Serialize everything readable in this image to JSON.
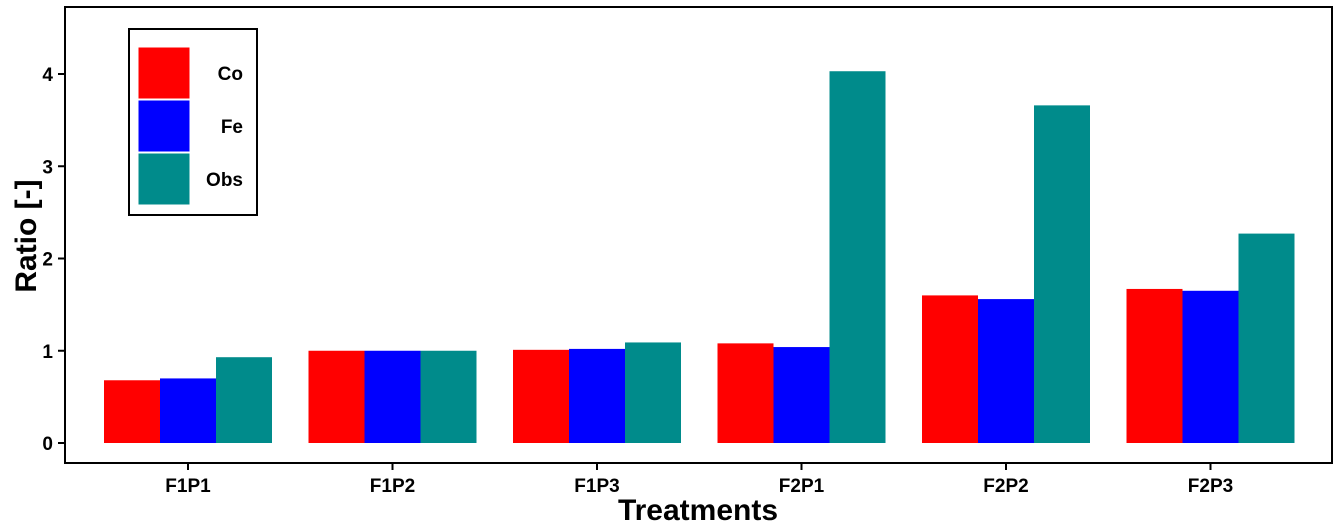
{
  "chart_data": {
    "type": "bar",
    "title": "",
    "xlabel": "Treatments",
    "ylabel": "Ratio [-]",
    "ylim": [
      0,
      4.6
    ],
    "yticks": [
      0,
      1,
      2,
      3,
      4
    ],
    "grid": false,
    "legend": "top-left",
    "categories": [
      "F1P1",
      "F1P2",
      "F1P3",
      "F2P1",
      "F2P2",
      "F2P3"
    ],
    "series": [
      {
        "name": "Co",
        "color": "#ff0000",
        "values": [
          0.68,
          1.0,
          1.01,
          1.08,
          1.6,
          1.67
        ]
      },
      {
        "name": "Fe",
        "color": "#0000ff",
        "values": [
          0.7,
          1.0,
          1.02,
          1.04,
          1.56,
          1.65
        ]
      },
      {
        "name": "Obs",
        "color": "#008b8b",
        "values": [
          0.93,
          1.0,
          1.09,
          4.03,
          3.66,
          2.27
        ]
      }
    ]
  }
}
